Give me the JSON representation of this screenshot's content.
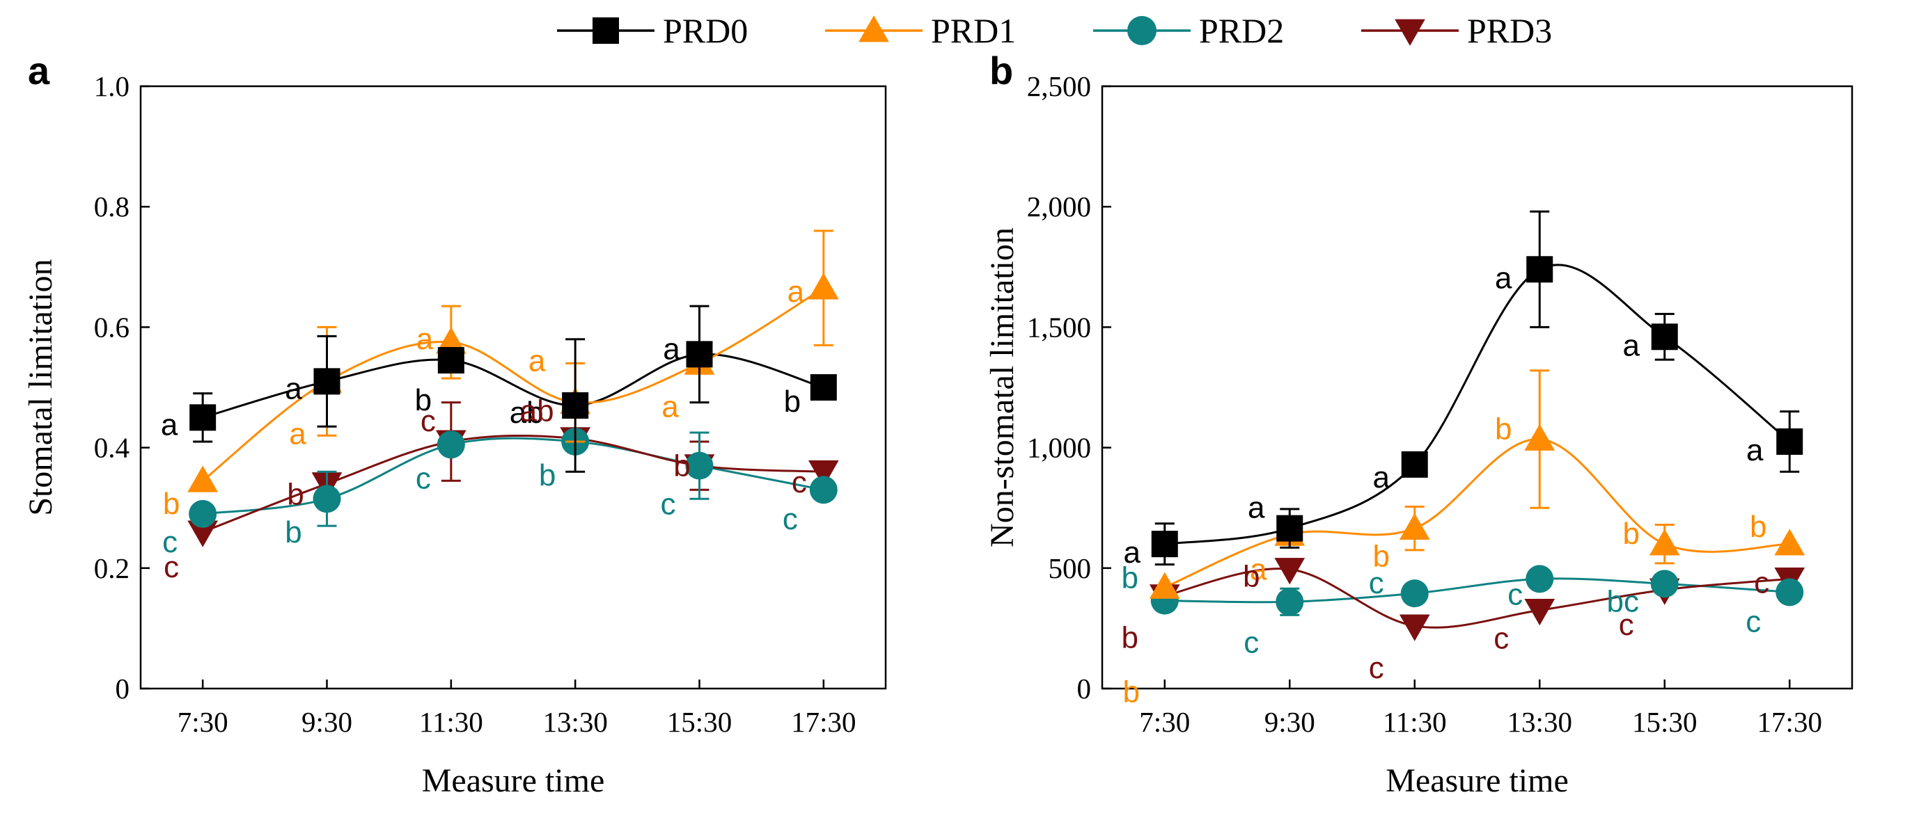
{
  "chart_data": [
    {
      "panel": "a",
      "type": "line",
      "xlabel": "Measure time",
      "ylabel": "Stomatal limitation",
      "categories": [
        "7:30",
        "9:30",
        "11:30",
        "13:30",
        "15:30",
        "17:30"
      ],
      "ylim": [
        0,
        1.0
      ],
      "yticks": [
        0,
        0.2,
        0.4,
        0.6,
        0.8,
        1.0
      ],
      "ytick_labels": [
        "0",
        "0.2",
        "0.4",
        "0.6",
        "0.8",
        "1.0"
      ],
      "series": [
        {
          "name": "PRD0",
          "values": [
            0.45,
            0.51,
            0.545,
            0.47,
            0.555,
            0.5
          ],
          "errors": [
            0.04,
            0.075,
            0.02,
            0.11,
            0.08,
            0.0
          ],
          "letters": [
            "a",
            "a",
            "b",
            "ab",
            "a",
            "b"
          ]
        },
        {
          "name": "PRD1",
          "values": [
            0.345,
            0.51,
            0.575,
            0.475,
            0.54,
            0.665
          ],
          "errors": [
            0.0,
            0.09,
            0.06,
            0.065,
            0.0,
            0.095
          ],
          "letters": [
            "b",
            "a",
            "a",
            "a",
            "a",
            "a"
          ]
        },
        {
          "name": "PRD2",
          "values": [
            0.29,
            0.315,
            0.405,
            0.41,
            0.37,
            0.33
          ],
          "errors": [
            0.0,
            0.045,
            0.0,
            0.0,
            0.055,
            0.0
          ],
          "letters": [
            "c",
            "b",
            "c",
            "b",
            "c",
            "c"
          ]
        },
        {
          "name": "PRD3",
          "values": [
            0.26,
            0.34,
            0.41,
            0.415,
            0.37,
            0.36
          ],
          "errors": [
            0.0,
            0.0,
            0.065,
            0.0,
            0.04,
            0.0
          ],
          "letters": [
            "c",
            "b",
            "c",
            "ab",
            "b",
            "c"
          ]
        }
      ]
    },
    {
      "panel": "b",
      "type": "line",
      "xlabel": "Measure time",
      "ylabel": "Non-stomatal limitation",
      "categories": [
        "7:30",
        "9:30",
        "11:30",
        "13:30",
        "15:30",
        "17:30"
      ],
      "ylim": [
        0,
        2500
      ],
      "yticks": [
        0,
        500,
        1000,
        1500,
        2000,
        2500
      ],
      "ytick_labels": [
        "0",
        "500",
        "1,000",
        "1,500",
        "2,000",
        "2,500"
      ],
      "series": [
        {
          "name": "PRD0",
          "values": [
            600,
            665,
            930,
            1740,
            1460,
            1025
          ],
          "errors": [
            85,
            80,
            0,
            240,
            95,
            125
          ],
          "letters": [
            "a",
            "a",
            "a",
            "a",
            "a",
            "a"
          ]
        },
        {
          "name": "PRD1",
          "values": [
            420,
            640,
            665,
            1035,
            600,
            600
          ],
          "errors": [
            0,
            0,
            90,
            285,
            80,
            0
          ],
          "letters": [
            "b",
            "a",
            "b",
            "b",
            "b",
            "b"
          ]
        },
        {
          "name": "PRD2",
          "values": [
            365,
            360,
            395,
            455,
            435,
            400
          ],
          "errors": [
            0,
            55,
            0,
            0,
            0,
            0
          ],
          "letters": [
            "b",
            "c",
            "c",
            "c",
            "bc",
            "c"
          ]
        },
        {
          "name": "PRD3",
          "values": [
            385,
            495,
            260,
            325,
            410,
            455
          ],
          "errors": [
            0,
            0,
            0,
            0,
            0,
            0
          ],
          "letters": [
            "b",
            "b",
            "c",
            "c",
            "c",
            "c"
          ]
        }
      ]
    }
  ],
  "legend": {
    "items": [
      {
        "name": "PRD0",
        "color": "#000000",
        "marker": "square"
      },
      {
        "name": "PRD1",
        "color": "#ff8c00",
        "marker": "triangle-up"
      },
      {
        "name": "PRD2",
        "color": "#0f8282",
        "marker": "circle"
      },
      {
        "name": "PRD3",
        "color": "#7b0f0f",
        "marker": "triangle-down"
      }
    ]
  },
  "colors": {
    "PRD0": "#000000",
    "PRD1": "#ff8c00",
    "PRD2": "#0f8282",
    "PRD3": "#7b0f0f"
  }
}
